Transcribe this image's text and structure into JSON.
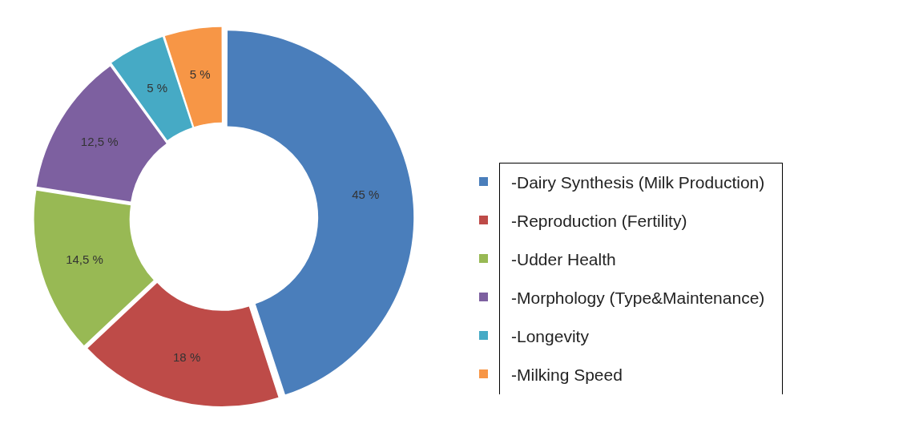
{
  "chart_data": {
    "type": "donut",
    "categories": [
      "-Dairy Synthesis (Milk Production)",
      "-Reproduction (Fertility)",
      "-Udder Health",
      "-Morphology (Type&Maintenance)",
      "-Longevity",
      "-Milking Speed"
    ],
    "values": [
      45,
      18,
      14.5,
      12.5,
      5,
      5
    ],
    "colors": [
      "#4a7ebb",
      "#be4b48",
      "#98b954",
      "#7d60a0",
      "#46aac5",
      "#f79646"
    ],
    "value_labels": [
      "45 %",
      "18 %",
      "14,5 %",
      "12,5 %",
      "5 %",
      "5 %"
    ],
    "legend": "right"
  }
}
